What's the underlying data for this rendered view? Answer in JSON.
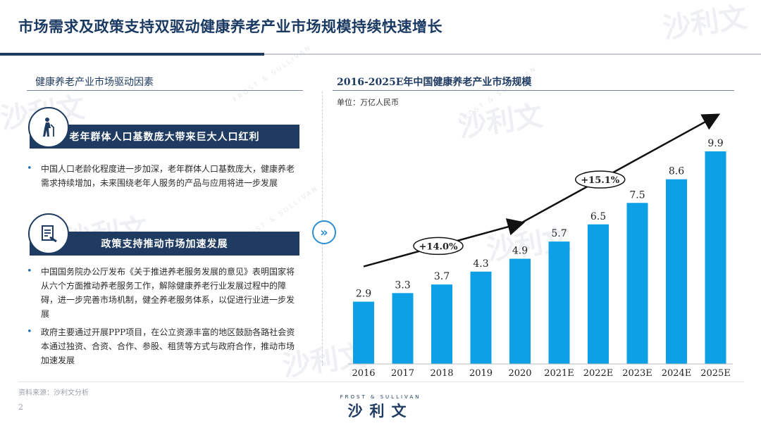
{
  "header": {
    "title": "市场需求及政策支持双驱动健康养老产业市场规模持续快速增长"
  },
  "left": {
    "section_title": "健康养老产业市场驱动因素",
    "driver1": {
      "banner": "老年群体人口基数庞大带来巨大人口红利",
      "icon": "elderly-person-icon",
      "bullets": [
        "中国人口老龄化程度进一步加深，老年群体人口基数庞大，健康养老需求持续增加，未来围绕老年人服务的产品与应用将进一步发展"
      ]
    },
    "driver2": {
      "banner": "政策支持推动市场加速发展",
      "icon": "policy-document-icon",
      "bullets": [
        "中国国务院办公厅发布《关于推进养老服务发展的意见》表明国家将从六个方面推动养老服务工作，解除健康养老行业发展过程中的障碍，进一步完善市场机制，健全养老服务体系，以促进行业进一步发展",
        "政府主要通过开展PPP项目，在公立资源丰富的地区鼓励各路社会资本通过独资、合资、合作、参股、租赁等方式与政府合作，推动市场加速发展"
      ]
    }
  },
  "right": {
    "section_title": "2016-2025E年中国健康养老产业市场规模",
    "unit": "单位：万亿人民币"
  },
  "chart_data": {
    "type": "bar",
    "title": "2016-2025E年中国健康养老产业市场规模",
    "ylabel": "万亿人民币",
    "categories": [
      "2016",
      "2017",
      "2018",
      "2019",
      "2020",
      "2021E",
      "2022E",
      "2023E",
      "2024E",
      "2025E"
    ],
    "values": [
      2.9,
      3.3,
      3.7,
      4.3,
      4.9,
      5.7,
      6.5,
      7.5,
      8.6,
      9.9
    ],
    "annotations": [
      {
        "label": "+14.0%",
        "from": "2016",
        "to": "2020"
      },
      {
        "label": "+15.1%",
        "from": "2020",
        "to": "2025E"
      }
    ],
    "ylim": [
      0,
      10
    ]
  },
  "footer": {
    "source": "资料来源：沙利文分析",
    "page": "2",
    "logo_top": "FROST & SULLIVAN",
    "logo_main": "沙利文"
  },
  "watermark": {
    "text": "沙利文",
    "small": "FROST & SULLIVAN"
  },
  "colors": {
    "navy": "#1f3b61",
    "bar": "#0ea0e6",
    "accent": "#2c8fd0"
  }
}
